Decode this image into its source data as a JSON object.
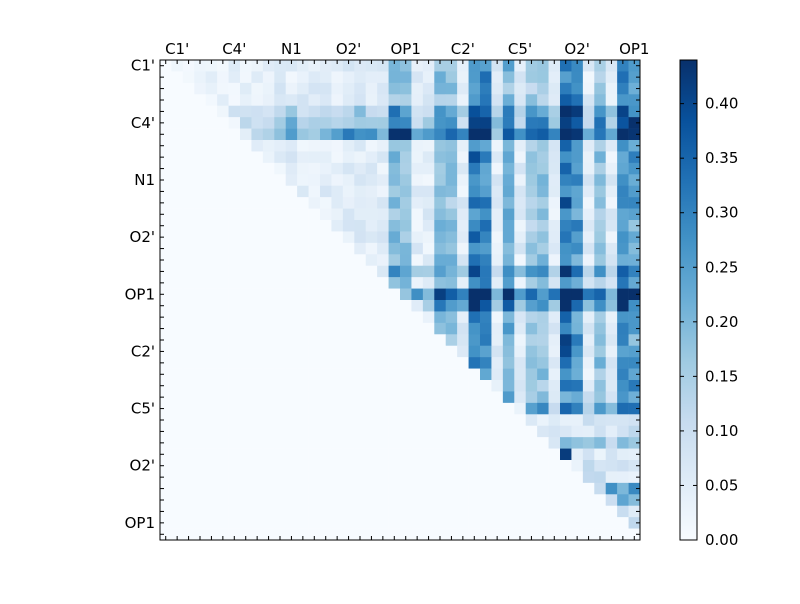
{
  "chart_data": {
    "type": "heatmap",
    "title": "",
    "n": 42,
    "x_tick_labels": [
      "C1'",
      "C4'",
      "N1",
      "O2'",
      "OP1",
      "C2'",
      "C5'",
      "O2'",
      "OP1"
    ],
    "y_tick_labels": [
      "C1'",
      "C4'",
      "N1",
      "O2'",
      "OP1",
      "C2'",
      "C5'",
      "O2'",
      "OP1"
    ],
    "tick_indices": [
      0,
      5,
      10,
      15,
      20,
      25,
      30,
      35,
      40
    ],
    "value_range": [
      0.0,
      0.44
    ],
    "colorbar": {
      "ticks": [
        0.0,
        0.05,
        0.1,
        0.15,
        0.2,
        0.25,
        0.3,
        0.35,
        0.4
      ],
      "tick_labels": [
        "0.00",
        "0.05",
        "0.10",
        "0.15",
        "0.20",
        "0.25",
        "0.30",
        "0.35",
        "0.40"
      ],
      "colors": [
        "#f7fbff",
        "#deebf7",
        "#c6dbef",
        "#9ecae1",
        "#6baed6",
        "#4292c6",
        "#2171b5",
        "#08519c",
        "#08306b"
      ]
    },
    "colormap": "Blues",
    "upper_triangular": true,
    "notes": "Estimated values: strong columns near index 27-28 and 35-36, with peak 0.44 near row 6 column 40."
  }
}
